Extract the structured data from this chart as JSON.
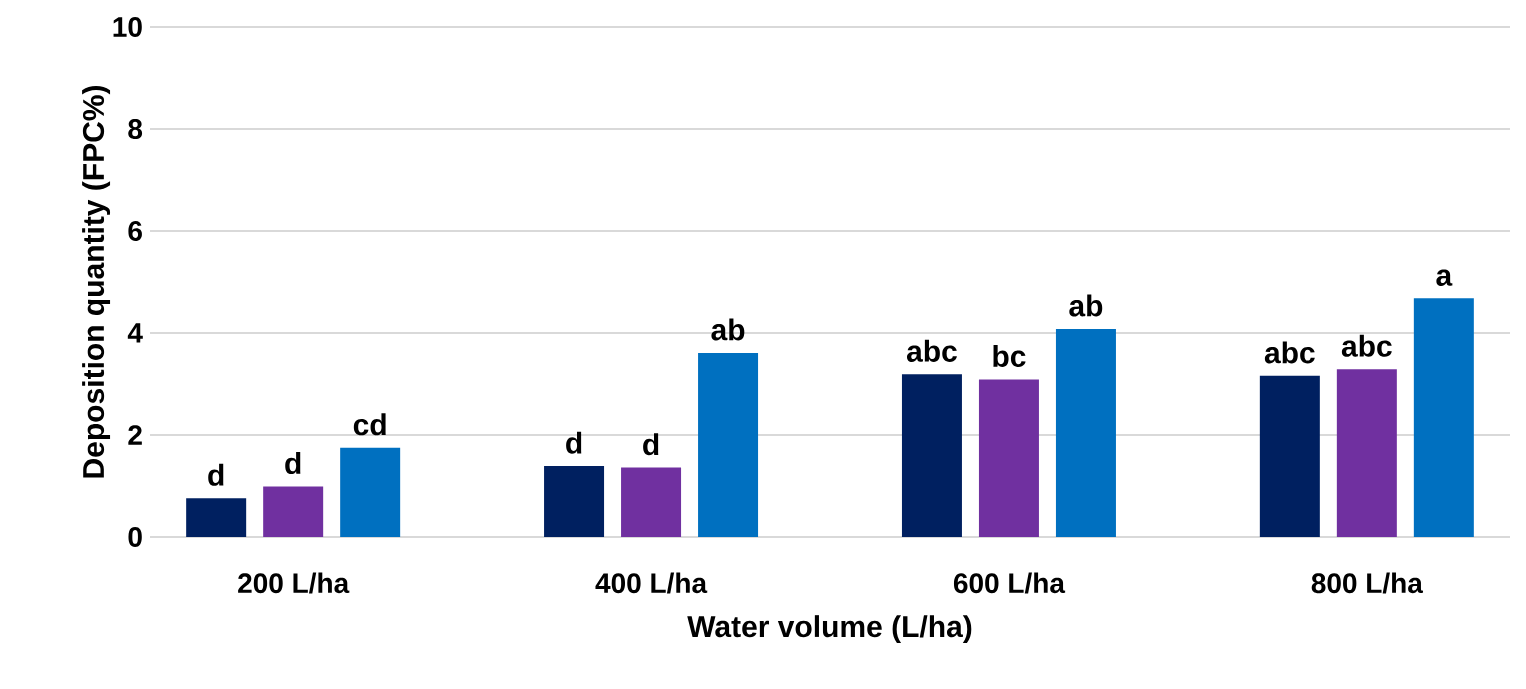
{
  "chart_data": {
    "type": "bar",
    "xlabel": "Water volume (L/ha)",
    "ylabel": "Deposition quantity (FPC%)",
    "categories": [
      "200 L/ha",
      "400 L/ha",
      "600 L/ha",
      "800 L/ha"
    ],
    "series": [
      {
        "color": "#002060",
        "values": [
          0.76,
          1.39,
          3.19,
          3.16
        ],
        "value_labels": [
          "d",
          "d",
          "abc",
          "abc"
        ]
      },
      {
        "color": "#7030a0",
        "values": [
          0.99,
          1.36,
          3.09,
          3.29
        ],
        "value_labels": [
          "d",
          "d",
          "bc",
          "abc"
        ]
      },
      {
        "color": "#0070c0",
        "values": [
          1.75,
          3.61,
          4.08,
          4.68
        ],
        "value_labels": [
          "cd",
          "ab",
          "ab",
          "a"
        ]
      }
    ],
    "ylim": [
      0,
      10
    ],
    "yticks": [
      0,
      2,
      4,
      6,
      8,
      10
    ],
    "grid": "y"
  }
}
